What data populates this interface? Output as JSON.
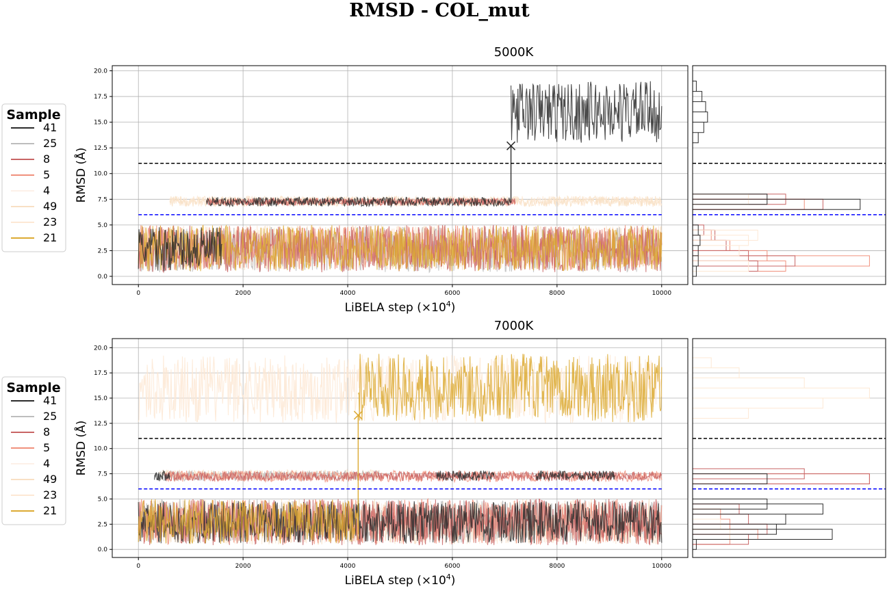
{
  "figure": {
    "suptitle": "RMSD - COL_mut"
  },
  "colors": {
    "41": "#2b2b2b",
    "25": "#bdbdbd",
    "8": "#c86464",
    "5": "#f0907c",
    "4": "#fdf0e8",
    "49": "#f8e0c4",
    "23": "#fde8d4",
    "21": "#dcaa32",
    "threshold_high": "#000000",
    "threshold_low": "#0000ff"
  },
  "chart_data": [
    {
      "type": "line",
      "title": "5000K",
      "xlabel": "LiBELA step (×10",
      "xlabel_sup": "4",
      "xlabel_close": ")",
      "ylabel": "RMSD (Å)",
      "xlim": [
        -500,
        10500
      ],
      "ylim": [
        -0.8,
        20.5
      ],
      "xticks": [
        0,
        2000,
        4000,
        6000,
        8000,
        10000
      ],
      "xtick_labels": [
        "0",
        "2000",
        "4000",
        "6000",
        "8000",
        "10000"
      ],
      "yticks": [
        0.0,
        2.5,
        5.0,
        7.5,
        10.0,
        12.5,
        15.0,
        17.5,
        20.0
      ],
      "ytick_labels": [
        "0.0",
        "2.5",
        "5.0",
        "7.5",
        "10.0",
        "12.5",
        "15.0",
        "17.5",
        "20.0"
      ],
      "thresholds": {
        "high": 11.0,
        "low": 6.0
      },
      "legend": {
        "title": "Sample",
        "entries": [
          "41",
          "25",
          "8",
          "5",
          "4",
          "49",
          "23",
          "21"
        ]
      },
      "series": [
        {
          "name": "4",
          "segments": [
            {
              "x": [
                0,
                10000
              ],
              "band": [
                0.8,
                4.8
              ]
            }
          ]
        },
        {
          "name": "23",
          "segments": [
            {
              "x": [
                0,
                10000
              ],
              "band": [
                0.6,
                5.0
              ]
            },
            {
              "x": [
                600,
                10000
              ],
              "band": [
                6.8,
                7.8
              ]
            }
          ]
        },
        {
          "name": "49",
          "segments": [
            {
              "x": [
                0,
                10000
              ],
              "band": [
                0.6,
                5.0
              ]
            },
            {
              "x": [
                600,
                10000
              ],
              "band": [
                6.8,
                7.8
              ]
            }
          ]
        },
        {
          "name": "25",
          "segments": [
            {
              "x": [
                0,
                10000
              ],
              "band": [
                0.4,
                4.8
              ]
            }
          ]
        },
        {
          "name": "5",
          "segments": [
            {
              "x": [
                0,
                10000
              ],
              "band": [
                0.6,
                5.0
              ]
            },
            {
              "x": [
                1300,
                7200
              ],
              "band": [
                6.9,
                7.6
              ]
            }
          ]
        },
        {
          "name": "8",
          "segments": [
            {
              "x": [
                0,
                10000
              ],
              "band": [
                0.4,
                5.0
              ]
            },
            {
              "x": [
                1300,
                7200
              ],
              "band": [
                6.9,
                7.6
              ]
            }
          ]
        },
        {
          "name": "21",
          "segments": [
            {
              "x": [
                0,
                10000
              ],
              "band": [
                0.5,
                5.0
              ]
            }
          ]
        },
        {
          "name": "41",
          "segments": [
            {
              "x": [
                0,
                1600
              ],
              "band": [
                0.5,
                4.8
              ]
            },
            {
              "x": [
                1300,
                7120
              ],
              "band": [
                6.8,
                7.7
              ]
            },
            {
              "x": [
                7120,
                10000
              ],
              "band": [
                13.0,
                19.0
              ]
            }
          ]
        }
      ],
      "markers": [
        {
          "series": "41",
          "x": 7120,
          "y": 12.7,
          "symbol": "x"
        }
      ],
      "histogram": {
        "41": [
          [
            0.5,
            0.02
          ],
          [
            1.5,
            0.03
          ],
          [
            2.5,
            0.03
          ],
          [
            3.5,
            0.04
          ],
          [
            4.5,
            0.03
          ],
          [
            7.0,
            0.9
          ],
          [
            7.5,
            0.4
          ],
          [
            13.5,
            0.03
          ],
          [
            14.5,
            0.06
          ],
          [
            15.5,
            0.08
          ],
          [
            16.5,
            0.07
          ],
          [
            17.5,
            0.05
          ],
          [
            18.5,
            0.02
          ]
        ],
        "8": [
          [
            1.0,
            0.35
          ],
          [
            1.5,
            0.55
          ],
          [
            2.0,
            0.3
          ],
          [
            3.0,
            0.18
          ],
          [
            4.0,
            0.12
          ],
          [
            4.5,
            0.06
          ],
          [
            7.0,
            0.7
          ],
          [
            7.5,
            0.5
          ]
        ],
        "5": [
          [
            1.0,
            0.5
          ],
          [
            1.5,
            0.95
          ],
          [
            2.0,
            0.4
          ],
          [
            3.0,
            0.2
          ],
          [
            4.0,
            0.1
          ],
          [
            7.0,
            0.6
          ]
        ],
        "23": [
          [
            1.0,
            0.3
          ],
          [
            2.5,
            0.25
          ],
          [
            3.5,
            0.3
          ],
          [
            4.0,
            0.35
          ],
          [
            7.5,
            0.3
          ]
        ]
      }
    },
    {
      "type": "line",
      "title": "7000K",
      "xlabel": "LiBELA step (×10",
      "xlabel_sup": "4",
      "xlabel_close": ")",
      "ylabel": "RMSD (Å)",
      "xlim": [
        -500,
        10500
      ],
      "ylim": [
        -0.8,
        20.9
      ],
      "xticks": [
        0,
        2000,
        4000,
        6000,
        8000,
        10000
      ],
      "xtick_labels": [
        "0",
        "2000",
        "4000",
        "6000",
        "8000",
        "10000"
      ],
      "yticks": [
        0.0,
        2.5,
        5.0,
        7.5,
        10.0,
        12.5,
        15.0,
        17.5,
        20.0
      ],
      "ytick_labels": [
        "0.0",
        "2.5",
        "5.0",
        "7.5",
        "10.0",
        "12.5",
        "15.0",
        "17.5",
        "20.0"
      ],
      "thresholds": {
        "high": 11.0,
        "low": 6.0
      },
      "legend": {
        "title": "Sample",
        "entries": [
          "41",
          "25",
          "8",
          "5",
          "4",
          "49",
          "23",
          "21"
        ]
      },
      "series": [
        {
          "name": "4",
          "segments": [
            {
              "x": [
                0,
                10000
              ],
              "band": [
                0.6,
                4.6
              ]
            }
          ]
        },
        {
          "name": "23",
          "segments": [
            {
              "x": [
                0,
                10000
              ],
              "band": [
                12.5,
                19.3
              ]
            },
            {
              "x": [
                500,
                10000
              ],
              "band": [
                0.5,
                4.8
              ]
            }
          ]
        },
        {
          "name": "49",
          "segments": [
            {
              "x": [
                0,
                10000
              ],
              "band": [
                0.5,
                5.0
              ]
            },
            {
              "x": [
                400,
                4600
              ],
              "band": [
                6.8,
                7.9
              ]
            }
          ]
        },
        {
          "name": "25",
          "segments": [
            {
              "x": [
                0,
                10000
              ],
              "band": [
                0.6,
                5.0
              ]
            },
            {
              "x": [
                400,
                4600
              ],
              "band": [
                6.8,
                7.8
              ]
            }
          ]
        },
        {
          "name": "5",
          "segments": [
            {
              "x": [
                0,
                10000
              ],
              "band": [
                0.5,
                5.0
              ]
            },
            {
              "x": [
                500,
                10000
              ],
              "band": [
                6.7,
                7.8
              ]
            }
          ]
        },
        {
          "name": "8",
          "segments": [
            {
              "x": [
                0,
                10000
              ],
              "band": [
                0.4,
                5.0
              ]
            },
            {
              "x": [
                500,
                10000
              ],
              "band": [
                6.8,
                7.7
              ]
            }
          ]
        },
        {
          "name": "41",
          "segments": [
            {
              "x": [
                0,
                10000
              ],
              "band": [
                0.6,
                4.8
              ]
            },
            {
              "x": [
                300,
                600
              ],
              "band": [
                6.8,
                7.8
              ]
            },
            {
              "x": [
                5700,
                6800
              ],
              "band": [
                6.8,
                7.8
              ]
            },
            {
              "x": [
                7600,
                9100
              ],
              "band": [
                6.8,
                7.8
              ]
            }
          ]
        },
        {
          "name": "21",
          "segments": [
            {
              "x": [
                0,
                4200
              ],
              "band": [
                0.5,
                5.0
              ]
            },
            {
              "x": [
                4200,
                10000
              ],
              "band": [
                12.6,
                19.4
              ]
            }
          ]
        }
      ],
      "markers": [
        {
          "series": "21",
          "x": 4200,
          "y": 13.3,
          "symbol": "x"
        }
      ],
      "histogram": {
        "41": [
          [
            0.5,
            0.02
          ],
          [
            1.5,
            0.75
          ],
          [
            2.0,
            0.45
          ],
          [
            3.0,
            0.5
          ],
          [
            4.0,
            0.7
          ],
          [
            4.5,
            0.4
          ],
          [
            7.0,
            0.4
          ]
        ],
        "8": [
          [
            1.0,
            0.3
          ],
          [
            2.0,
            0.4
          ],
          [
            3.0,
            0.3
          ],
          [
            4.0,
            0.25
          ],
          [
            7.0,
            0.95
          ],
          [
            7.5,
            0.6
          ]
        ],
        "5": [
          [
            1.0,
            0.2
          ],
          [
            1.5,
            0.35
          ],
          [
            2.5,
            0.2
          ],
          [
            3.5,
            0.15
          ],
          [
            7.0,
            0.95
          ]
        ],
        "23": [
          [
            1.5,
            0.2
          ],
          [
            2.5,
            0.15
          ],
          [
            13.5,
            0.3
          ],
          [
            14.5,
            0.7
          ],
          [
            15.5,
            0.95
          ],
          [
            16.5,
            0.6
          ],
          [
            17.5,
            0.25
          ],
          [
            18.5,
            0.1
          ]
        ]
      }
    }
  ]
}
